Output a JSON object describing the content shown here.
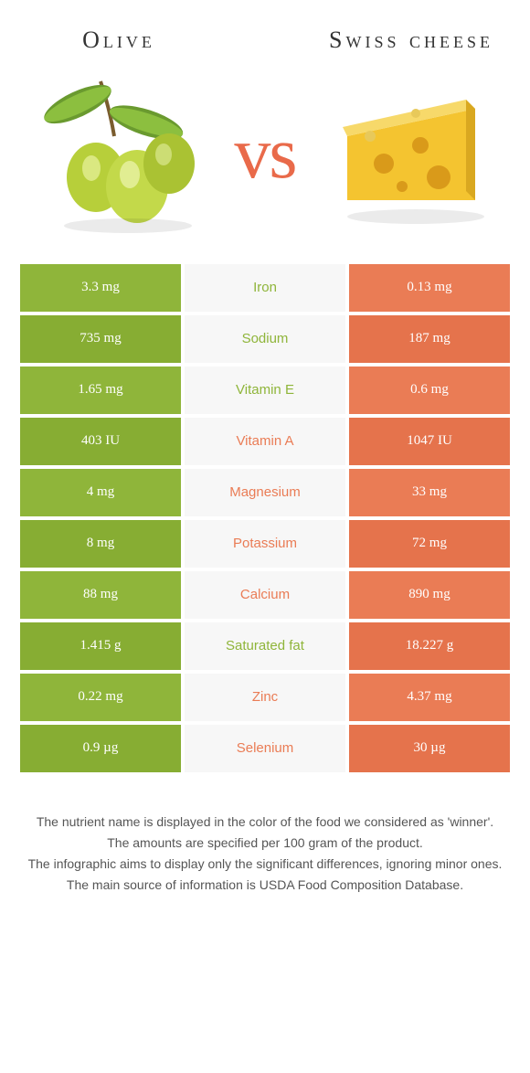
{
  "colors": {
    "left": "#8fb53a",
    "right": "#ea7c55",
    "label_bg": "#f7f7f7",
    "left_shade": "#87ad33",
    "right_shade": "#e5734c"
  },
  "header": {
    "left_title": "Olive",
    "right_title": "Swiss cheese",
    "vs": "vs"
  },
  "rows": [
    {
      "left": "3.3 mg",
      "label": "Iron",
      "winner": "left",
      "right": "0.13 mg"
    },
    {
      "left": "735 mg",
      "label": "Sodium",
      "winner": "left",
      "right": "187 mg"
    },
    {
      "left": "1.65 mg",
      "label": "Vitamin E",
      "winner": "left",
      "right": "0.6 mg"
    },
    {
      "left": "403 IU",
      "label": "Vitamin A",
      "winner": "right",
      "right": "1047 IU"
    },
    {
      "left": "4 mg",
      "label": "Magnesium",
      "winner": "right",
      "right": "33 mg"
    },
    {
      "left": "8 mg",
      "label": "Potassium",
      "winner": "right",
      "right": "72 mg"
    },
    {
      "left": "88 mg",
      "label": "Calcium",
      "winner": "right",
      "right": "890 mg"
    },
    {
      "left": "1.415 g",
      "label": "Saturated fat",
      "winner": "left",
      "right": "18.227 g"
    },
    {
      "left": "0.22 mg",
      "label": "Zinc",
      "winner": "right",
      "right": "4.37 mg"
    },
    {
      "left": "0.9 µg",
      "label": "Selenium",
      "winner": "right",
      "right": "30 µg"
    }
  ],
  "footnotes": [
    "The nutrient name is displayed in the color of the food we considered as 'winner'.",
    "The amounts are specified per 100 gram of the product.",
    "The infographic aims to display only the significant differences, ignoring minor ones.",
    "The main source of information is USDA Food Composition Database."
  ]
}
